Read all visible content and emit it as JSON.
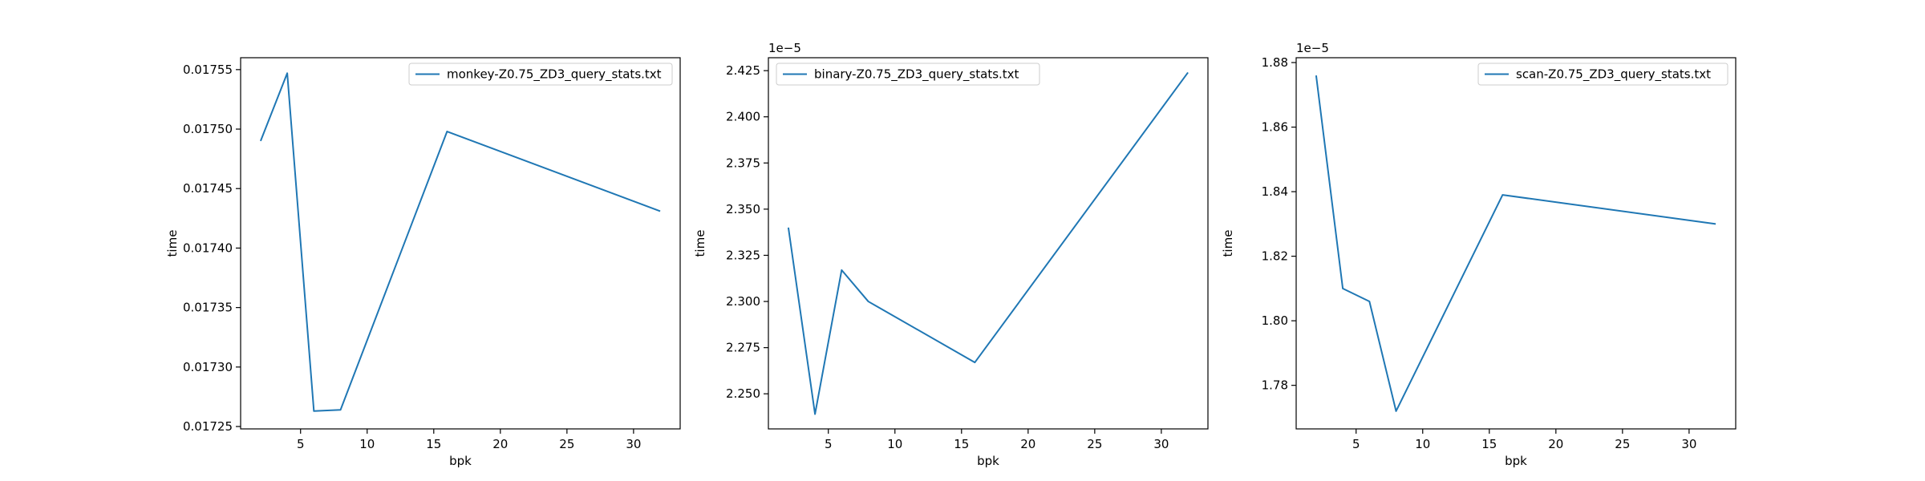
{
  "chart_data": [
    {
      "type": "line",
      "xlabel": "bpk",
      "ylabel": "time",
      "offset_label": "",
      "x": [
        2,
        4,
        6,
        8,
        16,
        32
      ],
      "series": [
        {
          "name": "monkey-Z0.75_ZD3_query_stats.txt",
          "values": [
            0.01749,
            0.017547,
            0.017263,
            0.017264,
            0.017498,
            0.017431
          ],
          "color": "#1f77b4"
        }
      ],
      "xlim": [
        0.5,
        33.5
      ],
      "ylim": [
        0.017248,
        0.01756
      ],
      "xticks": [
        5,
        10,
        15,
        20,
        25,
        30
      ],
      "xtick_labels": [
        "5",
        "10",
        "15",
        "20",
        "25",
        "30"
      ],
      "yticks": [
        0.01725,
        0.0173,
        0.01735,
        0.0174,
        0.01745,
        0.0175,
        0.01755
      ],
      "ytick_labels": [
        "0.01725",
        "0.01730",
        "0.01735",
        "0.01740",
        "0.01745",
        "0.01750",
        "0.01755"
      ],
      "legend_position": "upper right",
      "grid": false
    },
    {
      "type": "line",
      "xlabel": "bpk",
      "ylabel": "time",
      "offset_label": "1e−5",
      "x": [
        2,
        4,
        6,
        8,
        16,
        32
      ],
      "series": [
        {
          "name": "binary-Z0.75_ZD3_query_stats.txt",
          "values": [
            2.34,
            2.239,
            2.317,
            2.3,
            2.267,
            2.424
          ],
          "color": "#1f77b4"
        }
      ],
      "xlim": [
        0.5,
        33.5
      ],
      "ylim": [
        2.231,
        2.432
      ],
      "xticks": [
        5,
        10,
        15,
        20,
        25,
        30
      ],
      "xtick_labels": [
        "5",
        "10",
        "15",
        "20",
        "25",
        "30"
      ],
      "yticks": [
        2.25,
        2.275,
        2.3,
        2.325,
        2.35,
        2.375,
        2.4,
        2.425
      ],
      "ytick_labels": [
        "2.250",
        "2.275",
        "2.300",
        "2.325",
        "2.350",
        "2.375",
        "2.400",
        "2.425"
      ],
      "legend_position": "upper left",
      "grid": false
    },
    {
      "type": "line",
      "xlabel": "bpk",
      "ylabel": "time",
      "offset_label": "1e−5",
      "x": [
        2,
        4,
        6,
        8,
        16,
        32
      ],
      "series": [
        {
          "name": "scan-Z0.75_ZD3_query_stats.txt",
          "values": [
            1.876,
            1.81,
            1.806,
            1.772,
            1.839,
            1.83
          ],
          "color": "#1f77b4"
        }
      ],
      "xlim": [
        0.5,
        33.5
      ],
      "ylim": [
        1.7665,
        1.8815
      ],
      "xticks": [
        5,
        10,
        15,
        20,
        25,
        30
      ],
      "xtick_labels": [
        "5",
        "10",
        "15",
        "20",
        "25",
        "30"
      ],
      "yticks": [
        1.78,
        1.8,
        1.82,
        1.84,
        1.86,
        1.88
      ],
      "ytick_labels": [
        "1.78",
        "1.80",
        "1.82",
        "1.84",
        "1.86",
        "1.88"
      ],
      "legend_position": "upper right",
      "grid": false
    }
  ]
}
